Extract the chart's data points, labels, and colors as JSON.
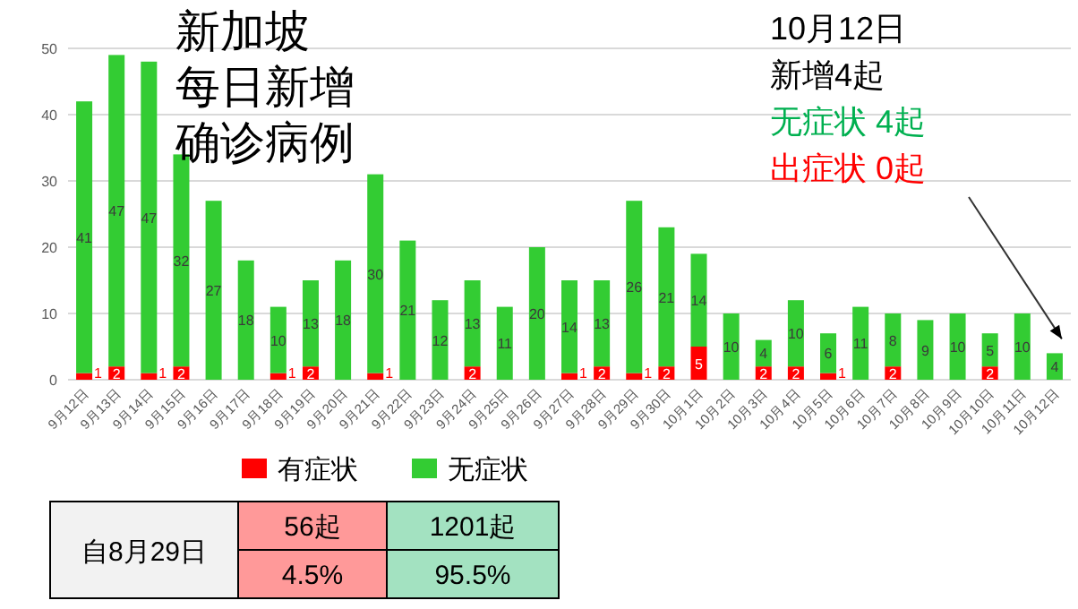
{
  "chart_data": {
    "type": "bar",
    "stacked": true,
    "title": "新加坡",
    "subtitle": "每日新增确诊病例",
    "categories": [
      "9月12日",
      "9月13日",
      "9月14日",
      "9月15日",
      "9月16日",
      "9月17日",
      "9月18日",
      "9月19日",
      "9月20日",
      "9月21日",
      "9月22日",
      "9月23日",
      "9月24日",
      "9月25日",
      "9月26日",
      "9月27日",
      "9月28日",
      "9月29日",
      "9月30日",
      "10月1日",
      "10月2日",
      "10月3日",
      "10月4日",
      "10月5日",
      "10月6日",
      "10月7日",
      "10月8日",
      "10月9日",
      "10月10日",
      "10月11日",
      "10月12日"
    ],
    "series": [
      {
        "name": "有症状",
        "color": "#ff0000",
        "values": [
          1,
          2,
          1,
          2,
          0,
          0,
          1,
          2,
          0,
          1,
          0,
          0,
          2,
          0,
          0,
          1,
          2,
          1,
          2,
          5,
          0,
          2,
          2,
          1,
          0,
          2,
          0,
          0,
          2,
          0,
          0
        ],
        "value_labels": [
          "1",
          "2",
          "1",
          "2",
          null,
          null,
          "1",
          "2",
          null,
          "1",
          null,
          null,
          "2",
          null,
          null,
          "1",
          "2",
          "1",
          "2",
          "5",
          null,
          "2",
          "2",
          "1",
          null,
          "2",
          null,
          null,
          "2",
          null,
          null
        ]
      },
      {
        "name": "无症状",
        "color": "#33cc33",
        "values": [
          41,
          47,
          47,
          32,
          27,
          18,
          10,
          13,
          18,
          30,
          21,
          12,
          13,
          11,
          20,
          14,
          13,
          26,
          21,
          14,
          10,
          4,
          10,
          6,
          11,
          8,
          9,
          10,
          5,
          10,
          4
        ],
        "value_labels": [
          "41",
          "47",
          "47",
          "32",
          "27",
          "18",
          "10",
          "13",
          "18",
          "30",
          "21",
          "12",
          "13",
          "11",
          "20",
          "14",
          "13",
          "26",
          "21",
          "14",
          "10",
          "4",
          "10",
          "6",
          "11",
          "8",
          "9",
          "10",
          "5",
          "10",
          "4"
        ]
      }
    ],
    "ylim": [
      0,
      50
    ],
    "yticks": [
      0,
      10,
      20,
      30,
      40,
      50
    ],
    "grid": "y",
    "legend": "bottom",
    "annotations": [
      "10月12日",
      "新增4起",
      "无症状 4起",
      "出症状 0起",
      "自8月29日",
      "56起",
      "1201起",
      "4.5%",
      "95.5%"
    ]
  }
}
